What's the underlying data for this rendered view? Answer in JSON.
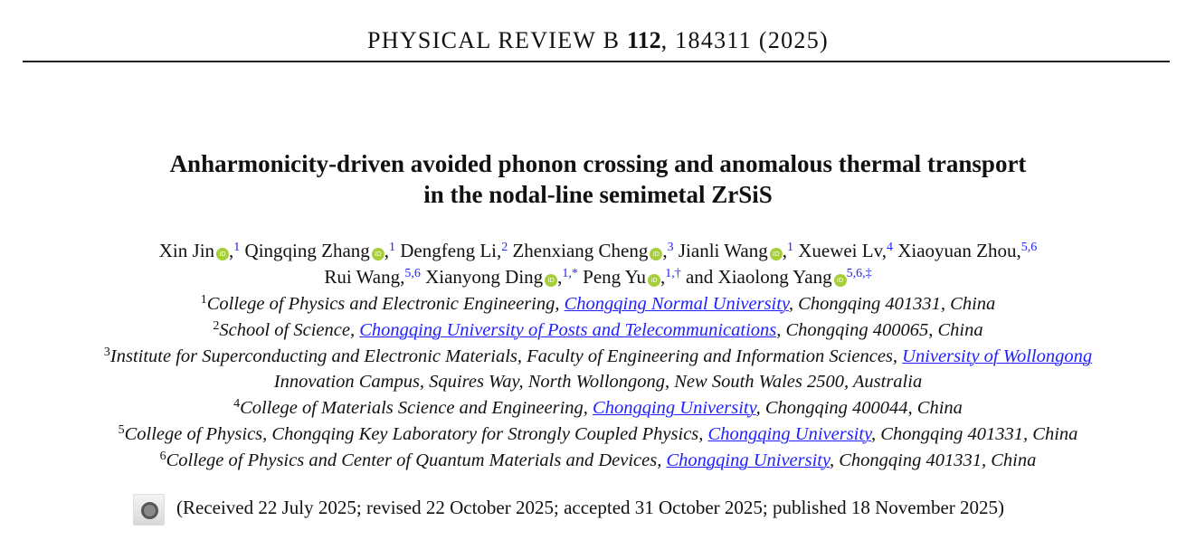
{
  "journal": {
    "name": "PHYSICAL REVIEW B",
    "volume": "112",
    "article": ", 184311 (2025)"
  },
  "title": {
    "line1": "Anharmonicity-driven avoided phonon crossing and anomalous thermal transport",
    "line2": "in the nodal-line semimetal ZrSiS"
  },
  "authors": [
    {
      "name": "Xin Jin",
      "orcid": true,
      "sup": "1",
      "sep": ","
    },
    {
      "name": "Qingqing Zhang",
      "orcid": true,
      "sup": "1",
      "sep": ","
    },
    {
      "name": "Dengfeng Li",
      "orcid": false,
      "sup": "2",
      "sep": ","
    },
    {
      "name": "Zhenxiang Cheng",
      "orcid": true,
      "sup": "3",
      "sep": ","
    },
    {
      "name": "Jianli Wang",
      "orcid": true,
      "sup": "1",
      "sep": ","
    },
    {
      "name": "Xuewei Lv",
      "orcid": false,
      "sup": "4",
      "sep": ","
    },
    {
      "name": "Xiaoyuan Zhou",
      "orcid": false,
      "sup": "5,6",
      "sep": ","
    },
    {
      "name": "Rui Wang",
      "orcid": false,
      "sup": "5,6",
      "sep": ","
    },
    {
      "name": "Xianyong Ding",
      "orcid": true,
      "sup": "1,*",
      "sep": ","
    },
    {
      "name": "Peng Yu",
      "orcid": true,
      "sup": "1,†",
      "sep": ","
    },
    {
      "name": "and Xiaolong Yang",
      "orcid": true,
      "sup": "5,6,‡",
      "sep": ""
    }
  ],
  "orcid_icon": "iD",
  "affiliations": [
    {
      "sup": "1",
      "pre": "College of Physics and Electronic Engineering, ",
      "link": "Chongqing Normal University",
      "post": ", Chongqing 401331, China"
    },
    {
      "sup": "2",
      "pre": "School of Science, ",
      "link": "Chongqing University of Posts and Telecommunications",
      "post": ", Chongqing 400065, China"
    },
    {
      "sup": "3",
      "pre": "Institute for Superconducting and Electronic Materials, Faculty of Engineering and Information Sciences, ",
      "link": "University of Wollongong",
      "post": "",
      "cont": "Innovation Campus, Squires Way, North Wollongong, New South Wales 2500, Australia"
    },
    {
      "sup": "4",
      "pre": "College of Materials Science and Engineering, ",
      "link": "Chongqing University",
      "post": ", Chongqing 400044, China"
    },
    {
      "sup": "5",
      "pre": "College of Physics, Chongqing Key Laboratory for Strongly Coupled Physics, ",
      "link": "Chongqing University",
      "post": ", Chongqing 401331, China"
    },
    {
      "sup": "6",
      "pre": "College of Physics and Center of Quantum Materials and Devices, ",
      "link": "Chongqing University",
      "post": ", Chongqing 401331, China"
    }
  ],
  "received": "(Received 22 July 2025; revised 22 October 2025; accepted 31 October 2025; published 18 November 2025)",
  "colors": {
    "link": "#1f1fff",
    "orcid": "#a6ce39"
  }
}
